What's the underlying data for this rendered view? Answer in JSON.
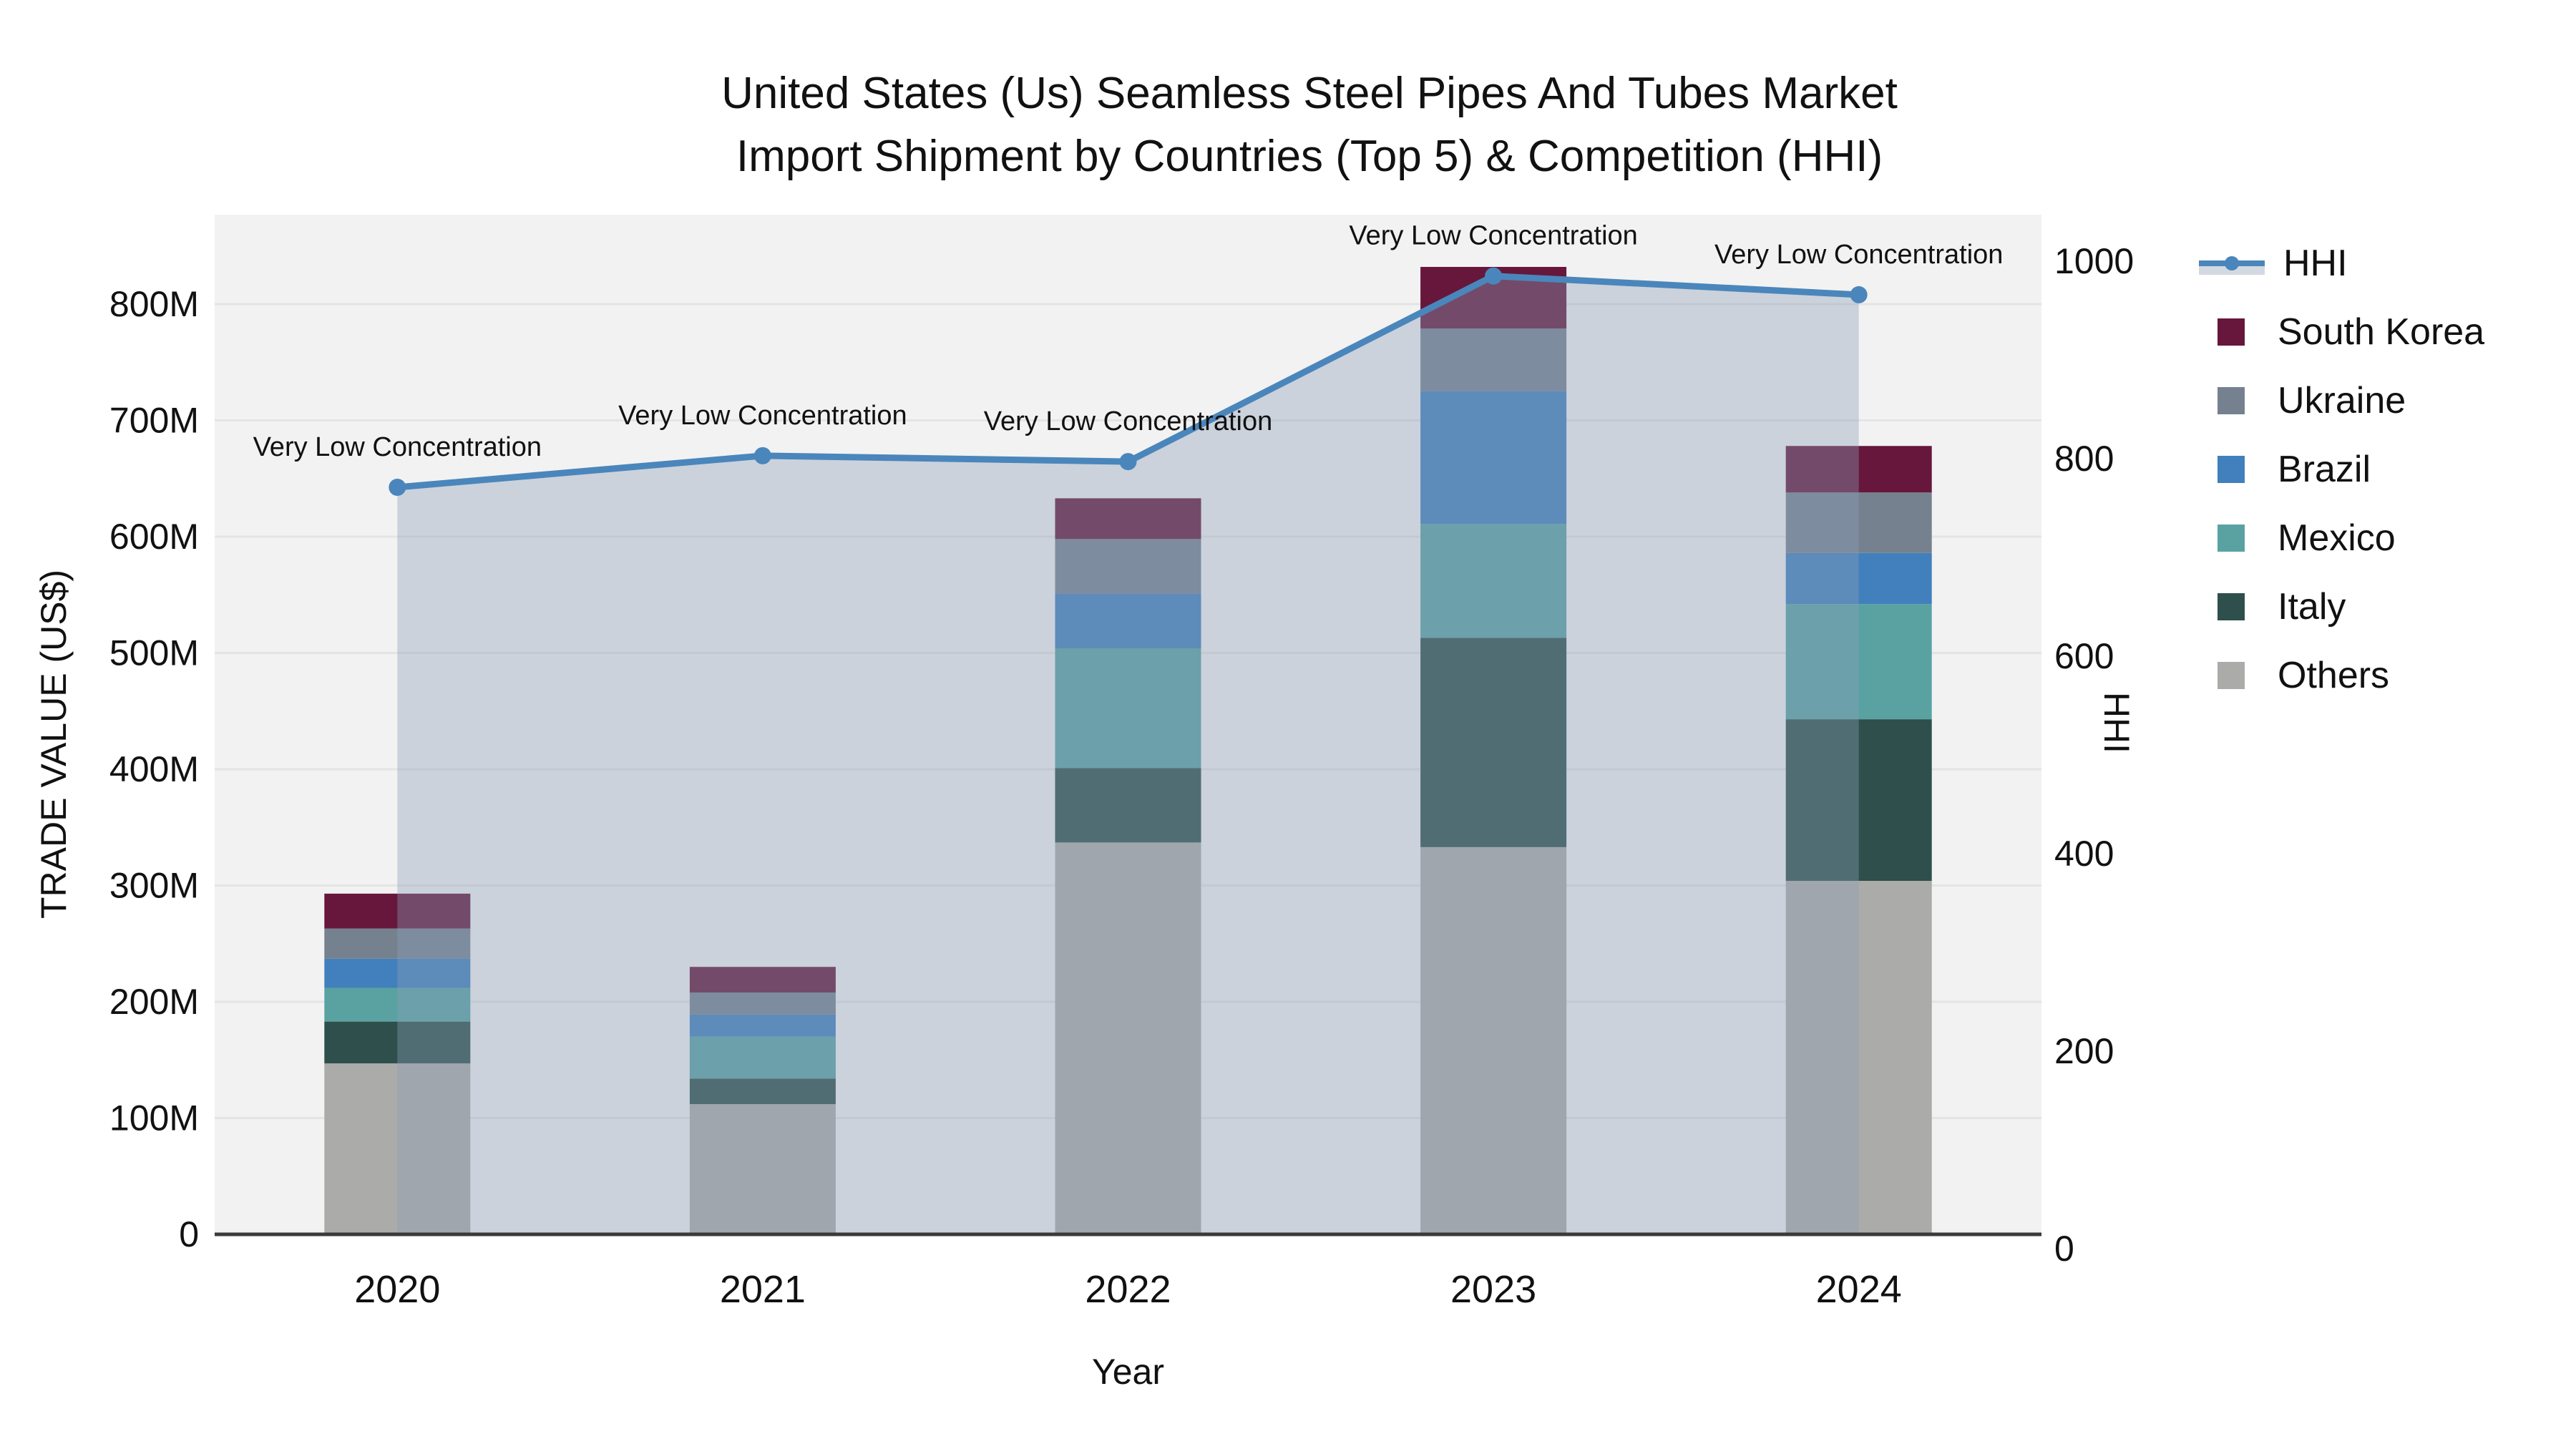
{
  "title": {
    "line1": "United States (Us) Seamless Steel Pipes And Tubes Market",
    "line2": "Import Shipment by Countries (Top 5) & Competition (HHI)"
  },
  "axes": {
    "x_label": "Year",
    "y_left_label": "TRADE VALUE (US$)",
    "y_right_label": "HHI",
    "y_left_ticks": [
      {
        "label": "0",
        "value": 0
      },
      {
        "label": "100M",
        "value": 100
      },
      {
        "label": "200M",
        "value": 200
      },
      {
        "label": "300M",
        "value": 300
      },
      {
        "label": "400M",
        "value": 400
      },
      {
        "label": "500M",
        "value": 500
      },
      {
        "label": "600M",
        "value": 600
      },
      {
        "label": "700M",
        "value": 700
      },
      {
        "label": "800M",
        "value": 800
      }
    ],
    "y_right_ticks": [
      {
        "label": "0",
        "value": 0
      },
      {
        "label": "200",
        "value": 200
      },
      {
        "label": "400",
        "value": 400
      },
      {
        "label": "600",
        "value": 600
      },
      {
        "label": "800",
        "value": 800
      },
      {
        "label": "1000",
        "value": 1000
      }
    ]
  },
  "colors": {
    "south_korea": "#67173B",
    "ukraine": "#75818F",
    "brazil": "#4180BC",
    "mexico": "#5AA2A2",
    "italy": "#2E4F4B",
    "others": "#ABABA9",
    "hhi_line": "#4A86BB",
    "area_fill": "rgba(140,157,185,0.38)",
    "plot_bg": "#F2F2F2",
    "gridline": "#E4E4E4",
    "axis_line": "#3A3A3A",
    "text": "#111111"
  },
  "chart_data": {
    "type": "bar-line-combo",
    "bar_mode": "stacked",
    "categories": [
      "2020",
      "2021",
      "2022",
      "2023",
      "2024"
    ],
    "bar_value_unit": "Million US$ (trade value, left axis)",
    "series": [
      {
        "name": "South Korea",
        "type": "bar",
        "color_key": "south_korea",
        "values": [
          30,
          22,
          35,
          53,
          40
        ]
      },
      {
        "name": "Ukraine",
        "type": "bar",
        "color_key": "ukraine",
        "values": [
          26,
          19,
          47,
          54,
          52
        ]
      },
      {
        "name": "Brazil",
        "type": "bar",
        "color_key": "brazil",
        "values": [
          25,
          19,
          47,
          114,
          44
        ]
      },
      {
        "name": "Mexico",
        "type": "bar",
        "color_key": "mexico",
        "values": [
          29,
          36,
          103,
          98,
          99
        ]
      },
      {
        "name": "Italy",
        "type": "bar",
        "color_key": "italy",
        "values": [
          36,
          22,
          64,
          180,
          139
        ]
      },
      {
        "name": "Others",
        "type": "bar",
        "color_key": "others",
        "values": [
          147,
          112,
          337,
          333,
          304
        ]
      },
      {
        "name": "HHI",
        "type": "line",
        "axis": "right",
        "color_key": "hhi_line",
        "area_under": true,
        "values": [
          771,
          803,
          797,
          985,
          966
        ]
      }
    ],
    "bar_totals": [
      293,
      230,
      633,
      832,
      678
    ],
    "annotations": [
      "Very Low Concentration",
      "Very Low Concentration",
      "Very Low Concentration",
      "Very Low Concentration",
      "Very Low Concentration"
    ],
    "y_left_range": [
      0,
      877
    ],
    "y_right_range": [
      0,
      1047
    ],
    "grid": "horizontal",
    "legend_position": "right",
    "legend_order": [
      "HHI",
      "South Korea",
      "Ukraine",
      "Brazil",
      "Mexico",
      "Italy",
      "Others"
    ]
  }
}
